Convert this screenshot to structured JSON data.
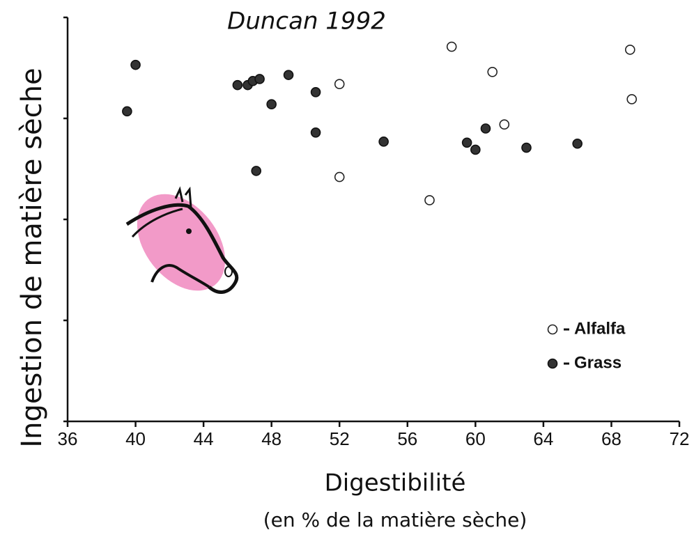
{
  "chart_data": {
    "type": "scatter",
    "title": "Duncan 1992",
    "xlabel": "Digestibilité",
    "xlabel_note": "(en % de la matière sèche)",
    "ylabel": "Ingestion de matière sèche",
    "xlim": [
      36,
      72
    ],
    "xticks": [
      36,
      40,
      44,
      48,
      52,
      56,
      60,
      64,
      68,
      72
    ],
    "ylim": [
      0,
      4
    ],
    "yticks": [
      0,
      1,
      2,
      3,
      4
    ],
    "legend": "lower right",
    "series": [
      {
        "name": "Alfalfa",
        "color": "#ffffff",
        "edge": "#222222",
        "x": [
          52,
          52,
          57.3,
          58.6,
          61,
          61.7,
          69.1,
          69.2
        ],
        "values": [
          3.34,
          2.42,
          2.19,
          3.71,
          3.46,
          2.94,
          3.68,
          3.19
        ]
      },
      {
        "name": "Grass",
        "color": "#333333",
        "edge": "#111111",
        "x": [
          39.5,
          40,
          46,
          46.6,
          46.9,
          47.3,
          49,
          48,
          50.6,
          50.6,
          47.1,
          54.6,
          59.5,
          60,
          60.6,
          63,
          66
        ],
        "values": [
          3.07,
          3.53,
          3.33,
          3.33,
          3.37,
          3.39,
          3.43,
          3.14,
          3.26,
          2.86,
          2.48,
          2.77,
          2.76,
          2.69,
          2.9,
          2.71,
          2.75
        ]
      }
    ]
  }
}
